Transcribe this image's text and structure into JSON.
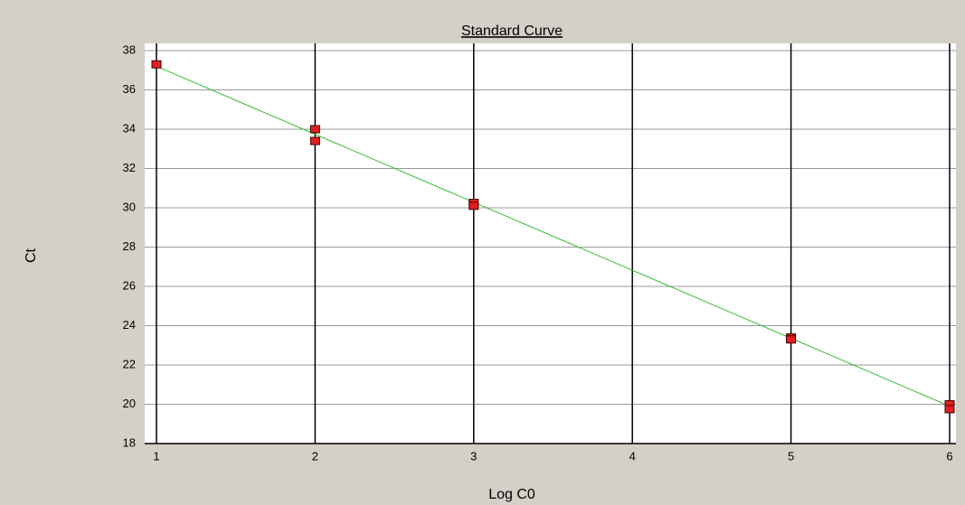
{
  "chart_data": {
    "type": "scatter",
    "title": "Standard Curve",
    "xlabel": "Log C0",
    "ylabel": "Ct",
    "x": [
      1,
      2,
      2,
      3,
      3,
      5,
      5,
      6,
      6
    ],
    "values": [
      37.3,
      34.0,
      33.4,
      30.25,
      30.1,
      23.4,
      23.3,
      20.0,
      19.75
    ],
    "color": "#e02020",
    "trendline": {
      "x": [
        1,
        6
      ],
      "y": [
        37.2,
        19.9
      ],
      "color": "#33bb33"
    },
    "xlim": [
      1,
      6
    ],
    "xticks": [
      1,
      2,
      3,
      4,
      5,
      6
    ],
    "ylim": [
      18,
      38
    ],
    "yticks": [
      18,
      20,
      22,
      24,
      26,
      28,
      30,
      32,
      34,
      36,
      38
    ],
    "grid": true
  }
}
